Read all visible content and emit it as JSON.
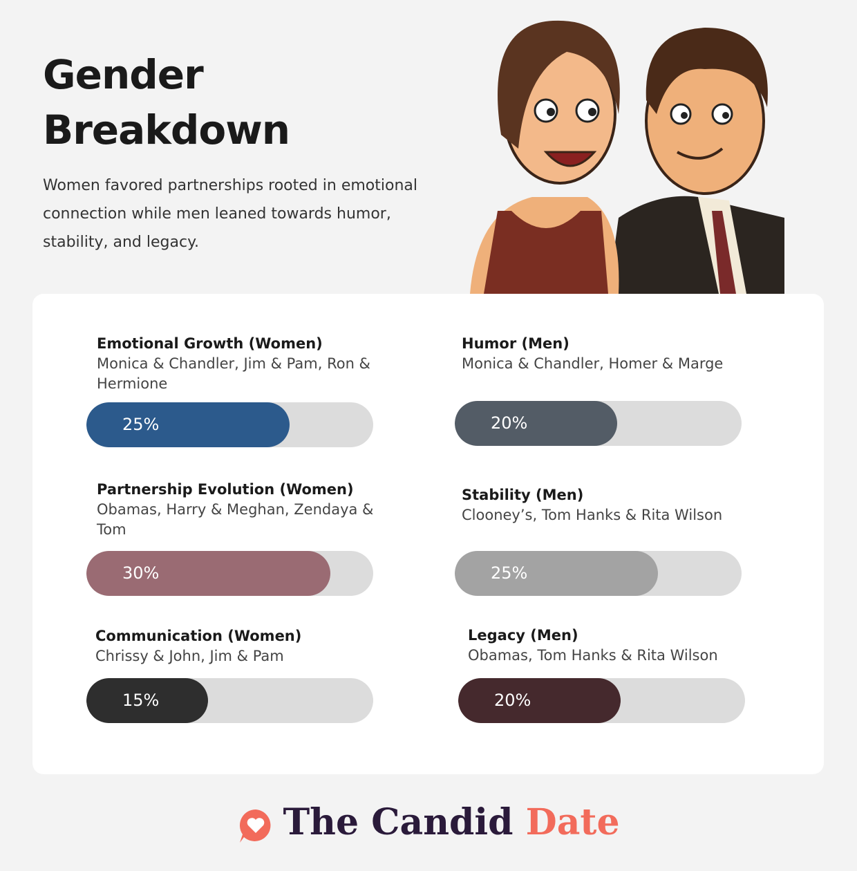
{
  "header": {
    "title_line1": "Gender",
    "title_line2": "Breakdown",
    "description": "Women favored partnerships rooted in emotional connection while men leaned towards humor, stability, and legacy."
  },
  "items": [
    {
      "title": "Emotional Growth (Women)",
      "examples": "Monica & Chandler, Jim & Pam, Ron & Hermione",
      "value": 25,
      "value_label": "25%",
      "color": "#2c5a8c"
    },
    {
      "title": "Humor (Men)",
      "examples": "Monica & Chandler, Homer & Marge",
      "value": 20,
      "value_label": "20%",
      "color": "#535c66"
    },
    {
      "title": "Partnership Evolution (Women)",
      "examples": "Obamas, Harry & Meghan, Zendaya & Tom",
      "value": 30,
      "value_label": "30%",
      "color": "#9a6b73"
    },
    {
      "title": "Stability (Men)",
      "examples": "Clooney’s, Tom Hanks & Rita Wilson",
      "value": 25,
      "value_label": "25%",
      "color": "#a3a3a3"
    },
    {
      "title": "Communication (Women)",
      "examples": "Chrissy & John, Jim & Pam",
      "value": 15,
      "value_label": "15%",
      "color": "#2e2e2e"
    },
    {
      "title": "Legacy (Men)",
      "examples": "Obamas, Tom Hanks & Rita Wilson",
      "value": 20,
      "value_label": "20%",
      "color": "#45292d"
    }
  ],
  "brand": {
    "name_part1": "The Candid",
    "name_part2": "Date"
  }
}
